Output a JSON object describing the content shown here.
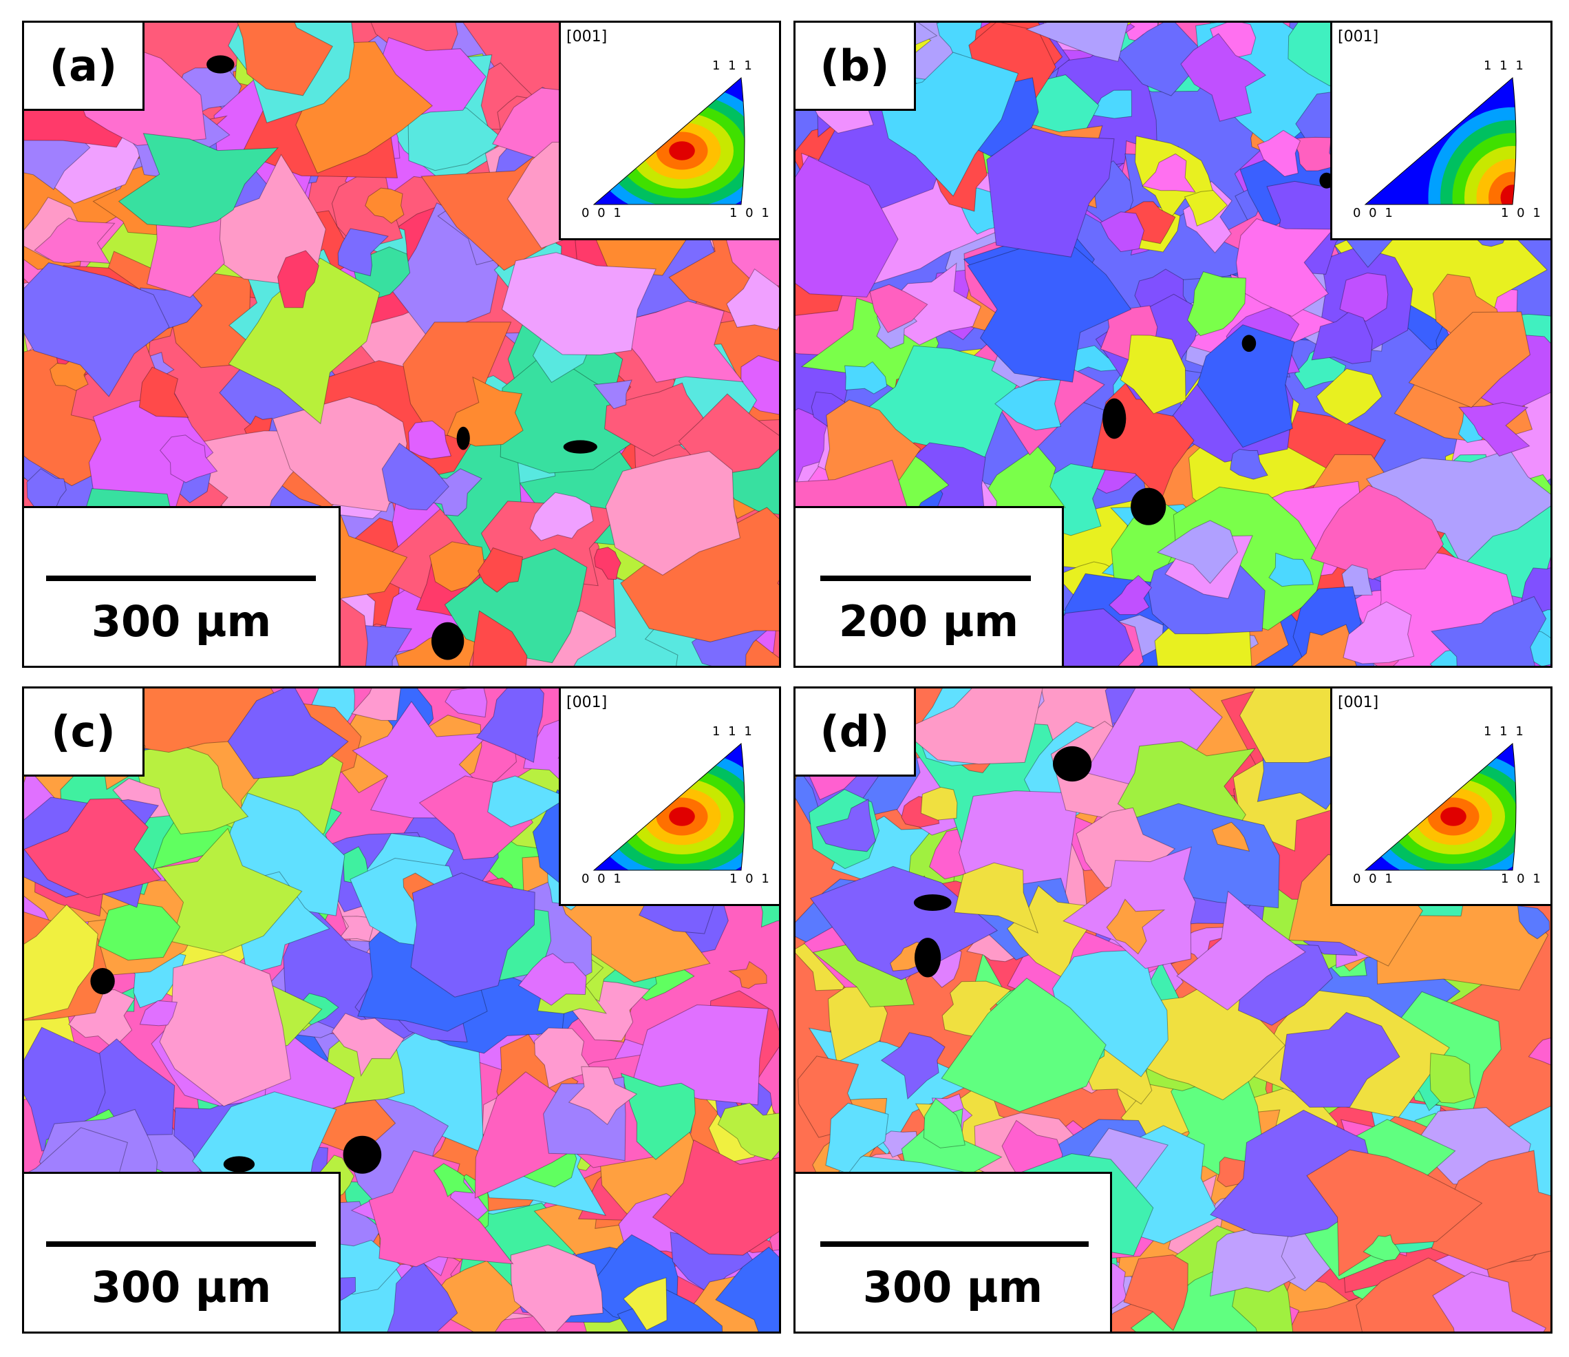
{
  "panels": [
    {
      "label": "(a)",
      "scale_text": "300 µm",
      "ipf": {
        "axis": "[001]",
        "corner_top": "1 1 1",
        "corner_left": "0 0 1",
        "corner_right": "1 0 1",
        "max_pole": "1 1 1"
      },
      "palette": [
        "#ff5a7a",
        "#ff7040",
        "#ff6fd0",
        "#7b6cff",
        "#58e8e0",
        "#b8f03a",
        "#ff9ac8",
        "#e060ff",
        "#ff8a30",
        "#ff3a6a",
        "#38e0a0",
        "#f0a0ff",
        "#a080ff",
        "#ff4a4a"
      ]
    },
    {
      "label": "(b)",
      "scale_text": "200 µm",
      "ipf": {
        "axis": "[001]",
        "corner_top": "1 1 1",
        "corner_left": "0 0 1",
        "corner_right": "1 0 1",
        "max_pole": "1 0 1"
      },
      "palette": [
        "#6a6cff",
        "#c050ff",
        "#ff70f0",
        "#4cd8ff",
        "#3a60ff",
        "#7aff4a",
        "#e8f020",
        "#ff60c0",
        "#40f0c0",
        "#8050ff",
        "#ff8a40",
        "#b0a0ff",
        "#ff4a4a",
        "#f090ff"
      ]
    },
    {
      "label": "(c)",
      "scale_text": "300 µm",
      "ipf": {
        "axis": "[001]",
        "corner_top": "1 1 1",
        "corner_left": "0 0 1",
        "corner_right": "1 0 1",
        "max_pole": "1 1 1"
      },
      "palette": [
        "#ff60c0",
        "#ff7a40",
        "#60e0ff",
        "#b8f040",
        "#7a60ff",
        "#ff4a7a",
        "#40f0a0",
        "#e070ff",
        "#ffa040",
        "#3a6aff",
        "#f0f040",
        "#ff9ad0",
        "#60ff60",
        "#a080ff"
      ]
    },
    {
      "label": "(d)",
      "scale_text": "300 µm",
      "ipf": {
        "axis": "[001]",
        "corner_top": "1 1 1",
        "corner_left": "0 0 1",
        "corner_right": "1 0 1",
        "max_pole": "1 1 1"
      },
      "palette": [
        "#ff7050",
        "#ff60d0",
        "#60e0ff",
        "#a0f040",
        "#8060ff",
        "#ff4a6a",
        "#40f0b0",
        "#e080ff",
        "#ffa040",
        "#5a7aff",
        "#f0e040",
        "#ff9ac8",
        "#60ff80",
        "#c0a0ff"
      ]
    }
  ]
}
